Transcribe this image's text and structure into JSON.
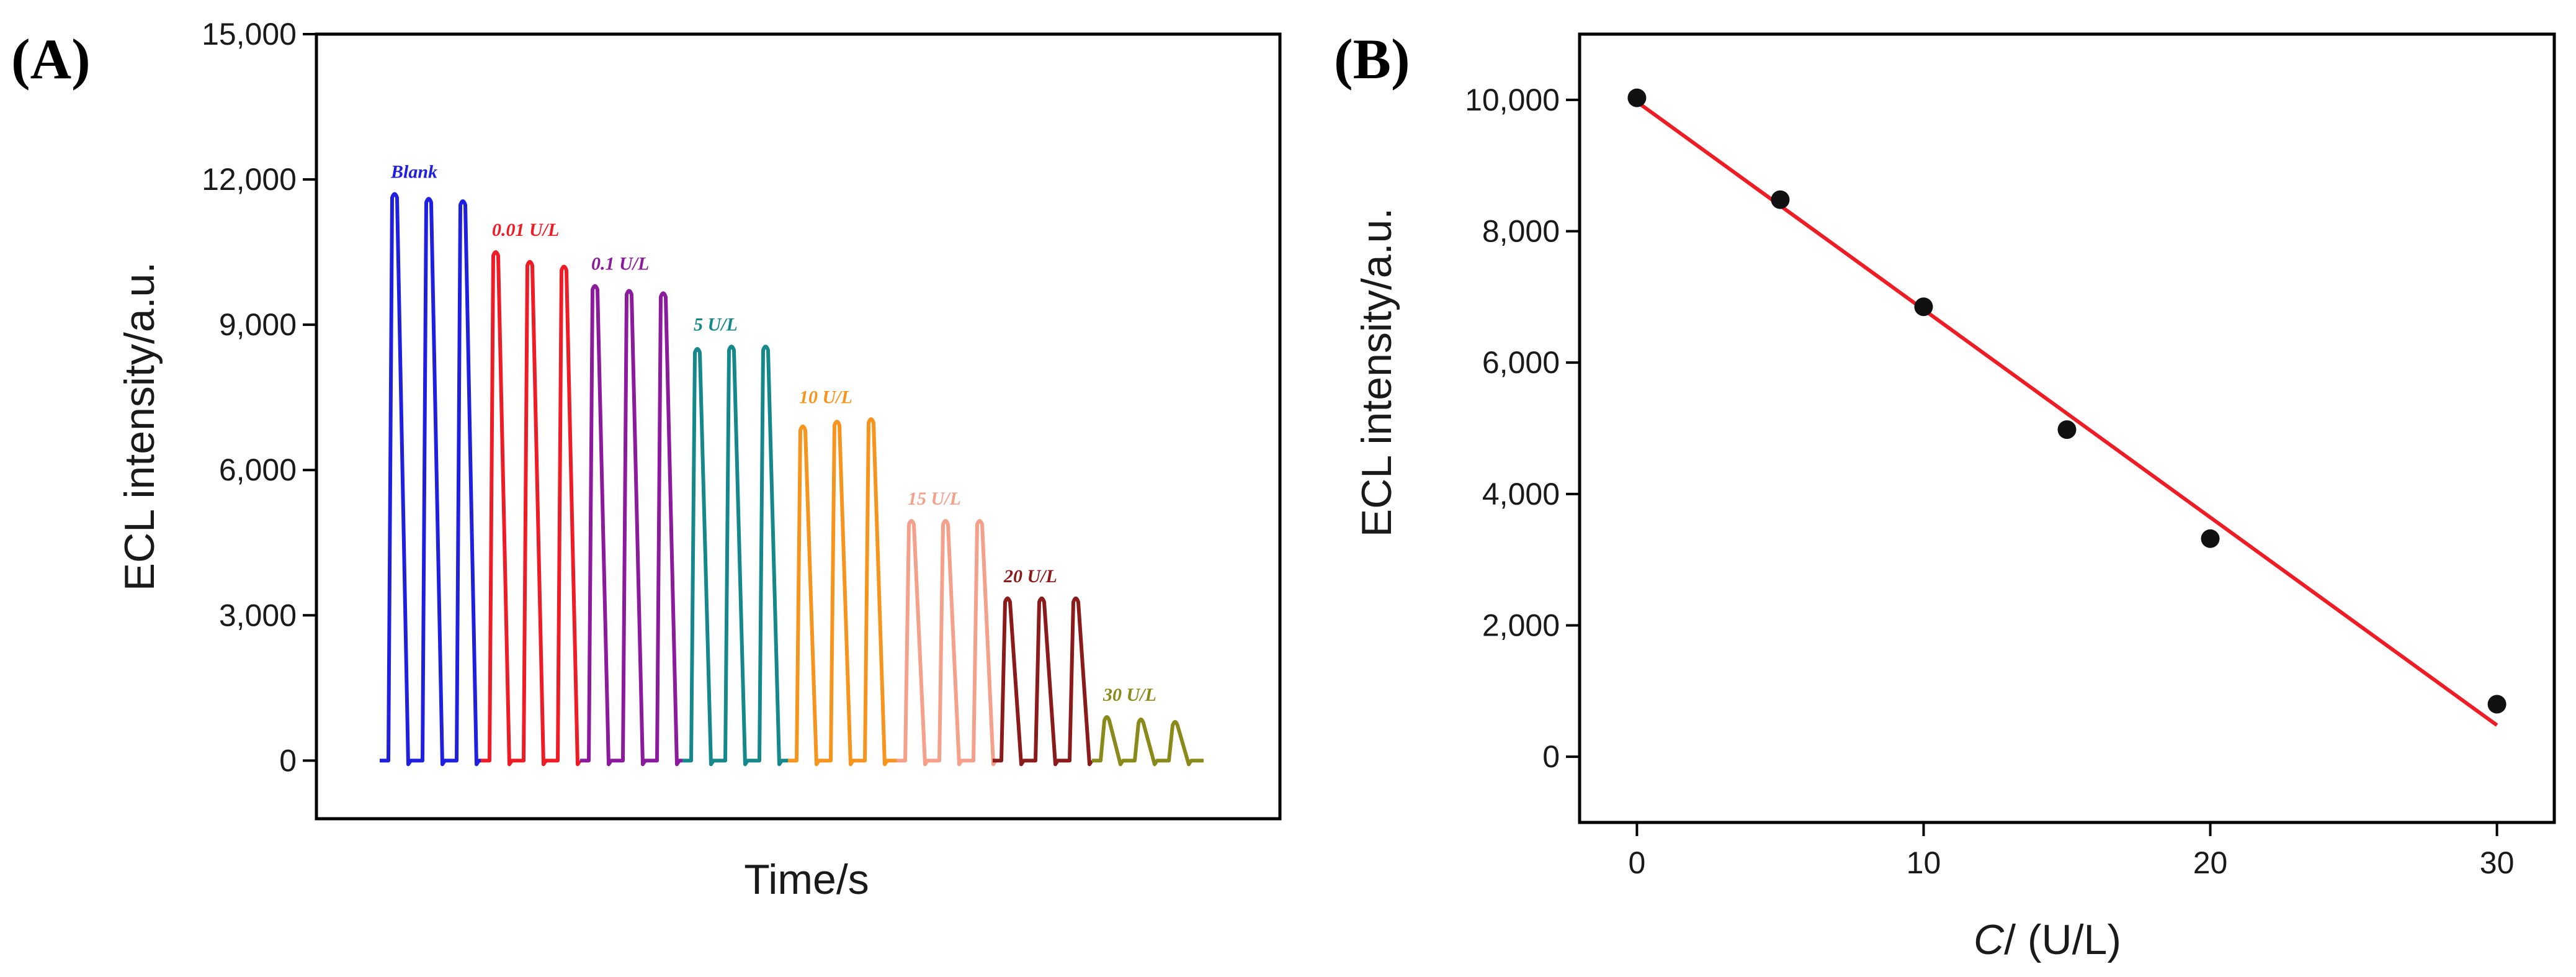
{
  "chart_data": [
    {
      "panel": "(A)",
      "type": "line",
      "xlabel": "Time/s",
      "ylabel": "ECL intensity/a.u.",
      "ylim": [
        -1200,
        15000
      ],
      "yticks": [
        0,
        3000,
        6000,
        9000,
        12000,
        15000
      ],
      "ytick_labels": [
        "0",
        "3,000",
        "6,000",
        "9,000",
        "12,000",
        "15,000"
      ],
      "series": [
        {
          "name": "Blank",
          "color": "#1f1fe0",
          "peaks": [
            11700,
            11600,
            11550
          ]
        },
        {
          "name": "0.01 U/L",
          "color": "#ee1c25",
          "peaks": [
            10500,
            10300,
            10200
          ]
        },
        {
          "name": "0.1 U/L",
          "color": "#8b1a9c",
          "peaks": [
            9800,
            9700,
            9650
          ]
        },
        {
          "name": "5 U/L",
          "color": "#14888a",
          "peaks": [
            8500,
            8550,
            8550
          ]
        },
        {
          "name": "10 U/L",
          "color": "#f7941d",
          "peaks": [
            6900,
            7000,
            7050
          ]
        },
        {
          "name": "15 U/L",
          "color": "#f4a08a",
          "peaks": [
            4950,
            4950,
            4950
          ]
        },
        {
          "name": "20 U/L",
          "color": "#8b1a1a",
          "peaks": [
            3350,
            3350,
            3350
          ]
        },
        {
          "name": "30 U/L",
          "color": "#8a8a1a",
          "peaks": [
            900,
            850,
            800
          ]
        }
      ]
    },
    {
      "panel": "(B)",
      "type": "scatter",
      "xlabel_italic": "C",
      "xlabel_rest": "/ (U/L)",
      "ylabel": "ECL intensity/a.u.",
      "xlim": [
        -2,
        32
      ],
      "ylim": [
        -1000,
        11000
      ],
      "xticks": [
        0,
        10,
        20,
        30
      ],
      "xtick_labels": [
        "0",
        "10",
        "20",
        "30"
      ],
      "yticks": [
        0,
        2000,
        4000,
        6000,
        8000,
        10000
      ],
      "ytick_labels": [
        "0",
        "2,000",
        "4,000",
        "6,000",
        "8,000",
        "10,000"
      ],
      "points": [
        {
          "x": 0,
          "y": 10030
        },
        {
          "x": 5,
          "y": 8480
        },
        {
          "x": 10,
          "y": 6850
        },
        {
          "x": 15,
          "y": 4980
        },
        {
          "x": 20,
          "y": 3320
        },
        {
          "x": 30,
          "y": 800
        }
      ],
      "point_color": "#111111",
      "fit": {
        "color": "#ee1c25",
        "x0": 0,
        "y0": 9970,
        "x1": 30,
        "y1": 480
      }
    }
  ]
}
